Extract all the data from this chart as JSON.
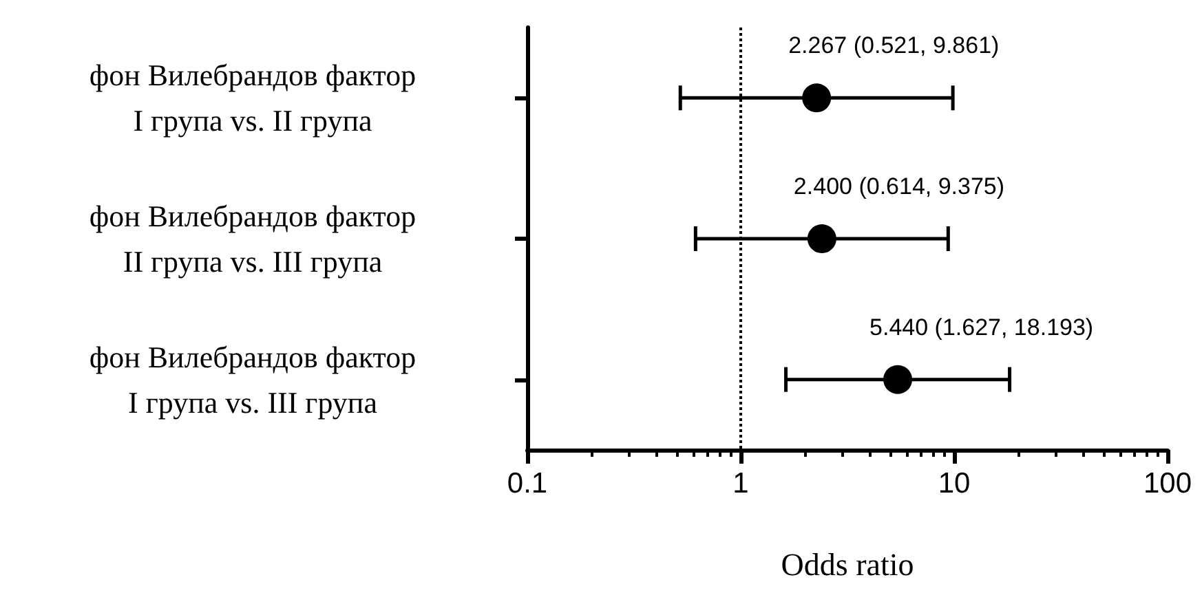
{
  "chart_data": {
    "type": "scatter",
    "orientation": "horizontal",
    "xlabel": "Odds ratio",
    "categories": [
      "фон Вилебрандов фактор\nI група vs. II група",
      "фон Вилебрандов фактор\nII група vs. III група",
      "фон Вилебрандов фактор\nI група vs. III група"
    ],
    "values": [
      2.267,
      2.4,
      5.44
    ],
    "errors": [
      [
        0.521,
        9.861
      ],
      [
        0.614,
        9.375
      ],
      [
        1.627,
        18.193
      ]
    ],
    "value_labels": [
      "2.267 (0.521, 9.861)",
      "2.400 (0.614, 9.375)",
      "5.440 (1.627, 18.193)"
    ],
    "color": "#000000",
    "marker": "circle",
    "log": "x",
    "xlim": [
      0.1,
      100
    ],
    "xticks": [
      0.1,
      1,
      10,
      100
    ],
    "ref_lines": [
      {
        "axis": "x",
        "value": 1,
        "line_style": "dotted"
      }
    ],
    "grid": false
  }
}
